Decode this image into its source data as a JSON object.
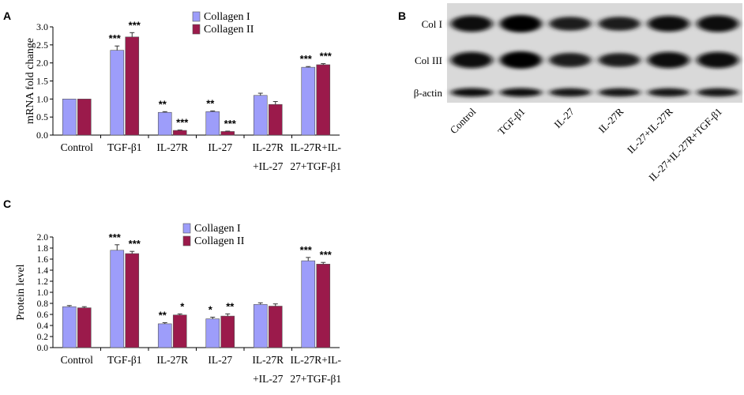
{
  "panels": {
    "a": "A",
    "b": "B",
    "c": "C"
  },
  "colors": {
    "collagen_i": "#9d9dfa",
    "collagen_ii": "#9b1a4b",
    "error": "#333333"
  },
  "chart_data": [
    {
      "type": "bar",
      "panel": "A",
      "ylabel": "mRNA fold change",
      "ylim": [
        0,
        3
      ],
      "yticks": [
        "0.0",
        "0.5",
        "1.0",
        "1.5",
        "2.0",
        "2.5",
        "3.0"
      ],
      "grid": false,
      "legend_position": "top",
      "categories": [
        [
          "Control"
        ],
        [
          "TGF-β1"
        ],
        [
          "IL-27R"
        ],
        [
          "IL-27"
        ],
        [
          "IL-27R",
          "+IL-27"
        ],
        [
          "IL-27R+IL-",
          "27+TGF-β1"
        ]
      ],
      "series": [
        {
          "name": "Collagen I",
          "values": [
            1.0,
            2.35,
            0.63,
            0.65,
            1.1,
            1.88
          ],
          "errors": [
            0,
            0.12,
            0.02,
            0.02,
            0.06,
            0.02
          ],
          "significance": [
            "",
            "***",
            "**",
            "**",
            "",
            "***"
          ]
        },
        {
          "name": "Collagen II",
          "values": [
            1.0,
            2.72,
            0.13,
            0.1,
            0.85,
            1.95
          ],
          "errors": [
            0,
            0.12,
            0.01,
            0.01,
            0.08,
            0.03
          ],
          "significance": [
            "",
            "***",
            "***",
            "***",
            "",
            "***"
          ]
        }
      ]
    },
    {
      "type": "bar",
      "panel": "C",
      "ylabel": "Protein level",
      "ylim": [
        0,
        2
      ],
      "yticks": [
        "0.0",
        "0.2",
        "0.4",
        "0.6",
        "0.8",
        "1.0",
        "1.2",
        "1.4",
        "1.6",
        "1.8",
        "2.0"
      ],
      "grid": false,
      "legend_position": "top",
      "categories": [
        [
          "Control"
        ],
        [
          "TGF-β1"
        ],
        [
          "IL-27R"
        ],
        [
          "IL-27"
        ],
        [
          "IL-27R",
          "+IL-27"
        ],
        [
          "IL-27R+IL-",
          "27+TGF-β1"
        ]
      ],
      "series": [
        {
          "name": "Collagen I",
          "values": [
            0.74,
            1.76,
            0.43,
            0.52,
            0.78,
            1.57
          ],
          "errors": [
            0.02,
            0.1,
            0.02,
            0.03,
            0.03,
            0.06
          ],
          "significance": [
            "",
            "***",
            "**",
            "*",
            "",
            "***"
          ]
        },
        {
          "name": "Collagen II",
          "values": [
            0.72,
            1.7,
            0.59,
            0.57,
            0.75,
            1.51
          ],
          "errors": [
            0.02,
            0.04,
            0.02,
            0.04,
            0.04,
            0.03
          ],
          "significance": [
            "",
            "***",
            "*",
            "**",
            "",
            "***"
          ]
        }
      ]
    }
  ],
  "blot": {
    "rows": [
      "Col I",
      "Col III",
      "β-actin"
    ],
    "lanes": [
      "Control",
      "TGF-β1",
      "IL-27",
      "IL-27R",
      "IL-27+IL-27R",
      "IL-27+IL-27R+TGF-β1"
    ],
    "intensity": [
      [
        0.85,
        1.0,
        0.55,
        0.55,
        0.8,
        0.9
      ],
      [
        0.85,
        1.0,
        0.6,
        0.55,
        0.85,
        0.85
      ],
      [
        0.8,
        0.8,
        0.75,
        0.75,
        0.75,
        0.75
      ]
    ]
  }
}
